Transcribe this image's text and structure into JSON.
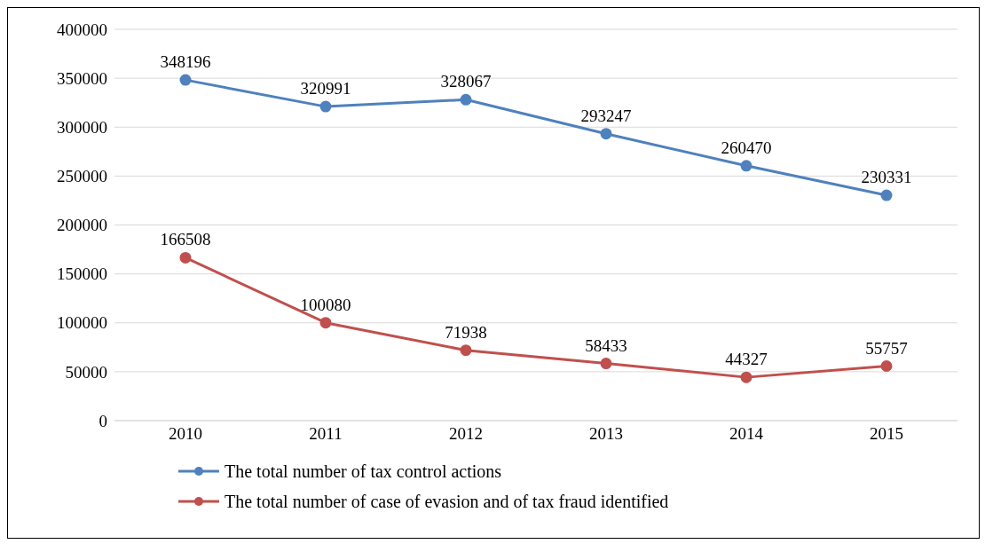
{
  "chart_data": {
    "type": "line",
    "categories": [
      "2010",
      "2011",
      "2012",
      "2013",
      "2014",
      "2015"
    ],
    "series": [
      {
        "name": "The total number of tax control actions",
        "color": "#4f81bd",
        "values": [
          348196,
          320991,
          328067,
          293247,
          260470,
          230331
        ]
      },
      {
        "name": "The total number of case of evasion and of tax fraud identified",
        "color": "#c0504d",
        "values": [
          166508,
          100080,
          71938,
          58433,
          44327,
          55757
        ]
      }
    ],
    "ylim": [
      0,
      400000
    ],
    "yticks": [
      0,
      50000,
      100000,
      150000,
      200000,
      250000,
      300000,
      350000,
      400000
    ],
    "grid": "y",
    "legend": "bottom left",
    "marker": "circle",
    "line_style": "solid",
    "data_labels": true
  }
}
